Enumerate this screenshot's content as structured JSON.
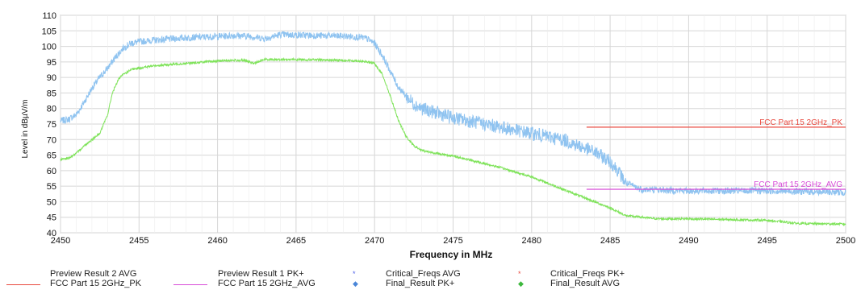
{
  "chart_data": {
    "type": "line",
    "title": "",
    "xlabel": "Frequency in MHz",
    "ylabel": "Level in dBµV/m",
    "xlim": [
      2450,
      2500
    ],
    "ylim": [
      40,
      110
    ],
    "x_ticks": [
      2450,
      2455,
      2460,
      2465,
      2470,
      2475,
      2480,
      2485,
      2490,
      2495,
      2500
    ],
    "y_ticks": [
      40,
      45,
      50,
      55,
      60,
      65,
      70,
      75,
      80,
      85,
      90,
      95,
      100,
      105,
      110
    ],
    "grid": true,
    "series": [
      {
        "name": "Preview Result 1 PK+",
        "color": "#8fc3f0",
        "x": [
          2450,
          2450.5,
          2451,
          2451.5,
          2452,
          2452.5,
          2453,
          2453.5,
          2454,
          2454.5,
          2455,
          2456,
          2458,
          2460,
          2461,
          2462,
          2463,
          2464,
          2466,
          2468,
          2469,
          2469.5,
          2470,
          2470.5,
          2471,
          2471.5,
          2472,
          2472.5,
          2473,
          2474,
          2475,
          2476,
          2478,
          2480,
          2482,
          2483,
          2484,
          2485,
          2485.5,
          2486,
          2487,
          2490,
          2495,
          2500
        ],
        "values": [
          76,
          76.5,
          78,
          82,
          86.5,
          90,
          93,
          96.5,
          99.5,
          101,
          101.5,
          102,
          102.8,
          103.2,
          103.5,
          103.3,
          102.5,
          103.8,
          103.5,
          103.3,
          103,
          102.5,
          101,
          97,
          92,
          87,
          84,
          81.5,
          80,
          78.5,
          77,
          76,
          74,
          72,
          70,
          68,
          66,
          63,
          60,
          56,
          54,
          53.5,
          53.5,
          53
        ]
      },
      {
        "name": "Preview Result 2 AVG",
        "color": "#7fe35a",
        "x": [
          2450,
          2450.5,
          2451,
          2451.5,
          2452,
          2452.5,
          2453,
          2453.3,
          2453.7,
          2454,
          2454.5,
          2455,
          2456,
          2458,
          2460,
          2461,
          2461.7,
          2462.3,
          2463,
          2464,
          2466,
          2468,
          2469,
          2469.5,
          2470,
          2470.5,
          2471,
          2471.5,
          2472,
          2472.5,
          2473,
          2474,
          2475,
          2476,
          2478,
          2480,
          2482,
          2484,
          2485,
          2486,
          2488,
          2490,
          2495,
          2497,
          2500
        ],
        "values": [
          63.5,
          64,
          65.5,
          68,
          70,
          72,
          78,
          85,
          89.5,
          91,
          92.5,
          93,
          93.8,
          94.5,
          95.3,
          95.5,
          95.5,
          94.5,
          95.8,
          95.8,
          95.7,
          95.5,
          95.3,
          95,
          94.5,
          91,
          84,
          76.5,
          71,
          68,
          66.5,
          65.5,
          64.7,
          63.5,
          61,
          58,
          54,
          50,
          48,
          45.5,
          44.5,
          44.5,
          44,
          43,
          42.8
        ]
      },
      {
        "name": "FCC Part 15 2GHz_PK",
        "color": "#e8493f",
        "x": [
          2483.5,
          2500
        ],
        "values": [
          74,
          74
        ]
      },
      {
        "name": "FCC Part 15 2GHz_AVG",
        "color": "#d84bd8",
        "x": [
          2483.5,
          2500
        ],
        "values": [
          54,
          54
        ]
      }
    ],
    "annotations": [
      {
        "text": "FCC Part 15 2GHz_PK",
        "x": 2500,
        "y": 74,
        "color": "#e8493f"
      },
      {
        "text": "FCC Part 15 2GHz_AVG",
        "x": 2500,
        "y": 54,
        "color": "#d84bd8"
      }
    ]
  },
  "legend": [
    {
      "label": "Preview Result 2 AVG",
      "color": "#e8493f",
      "kind": "none"
    },
    {
      "label": "FCC Part 15 2GHz_PK",
      "color": "#e8493f",
      "kind": "line"
    },
    {
      "label": "Preview Result 1 PK+",
      "color": "#d84bd8",
      "kind": "none"
    },
    {
      "label": "FCC Part 15 2GHz_AVG",
      "color": "#d84bd8",
      "kind": "line"
    },
    {
      "label": "Critical_Freqs AVG",
      "color": "#4a5ee8",
      "kind": "star"
    },
    {
      "label": "Final_Result PK+",
      "color": "#4a86d8",
      "kind": "diamond"
    },
    {
      "label": "Critical_Freqs PK+",
      "color": "#e8493f",
      "kind": "star"
    },
    {
      "label": "Final_Result AVG",
      "color": "#3db83d",
      "kind": "diamond"
    }
  ]
}
